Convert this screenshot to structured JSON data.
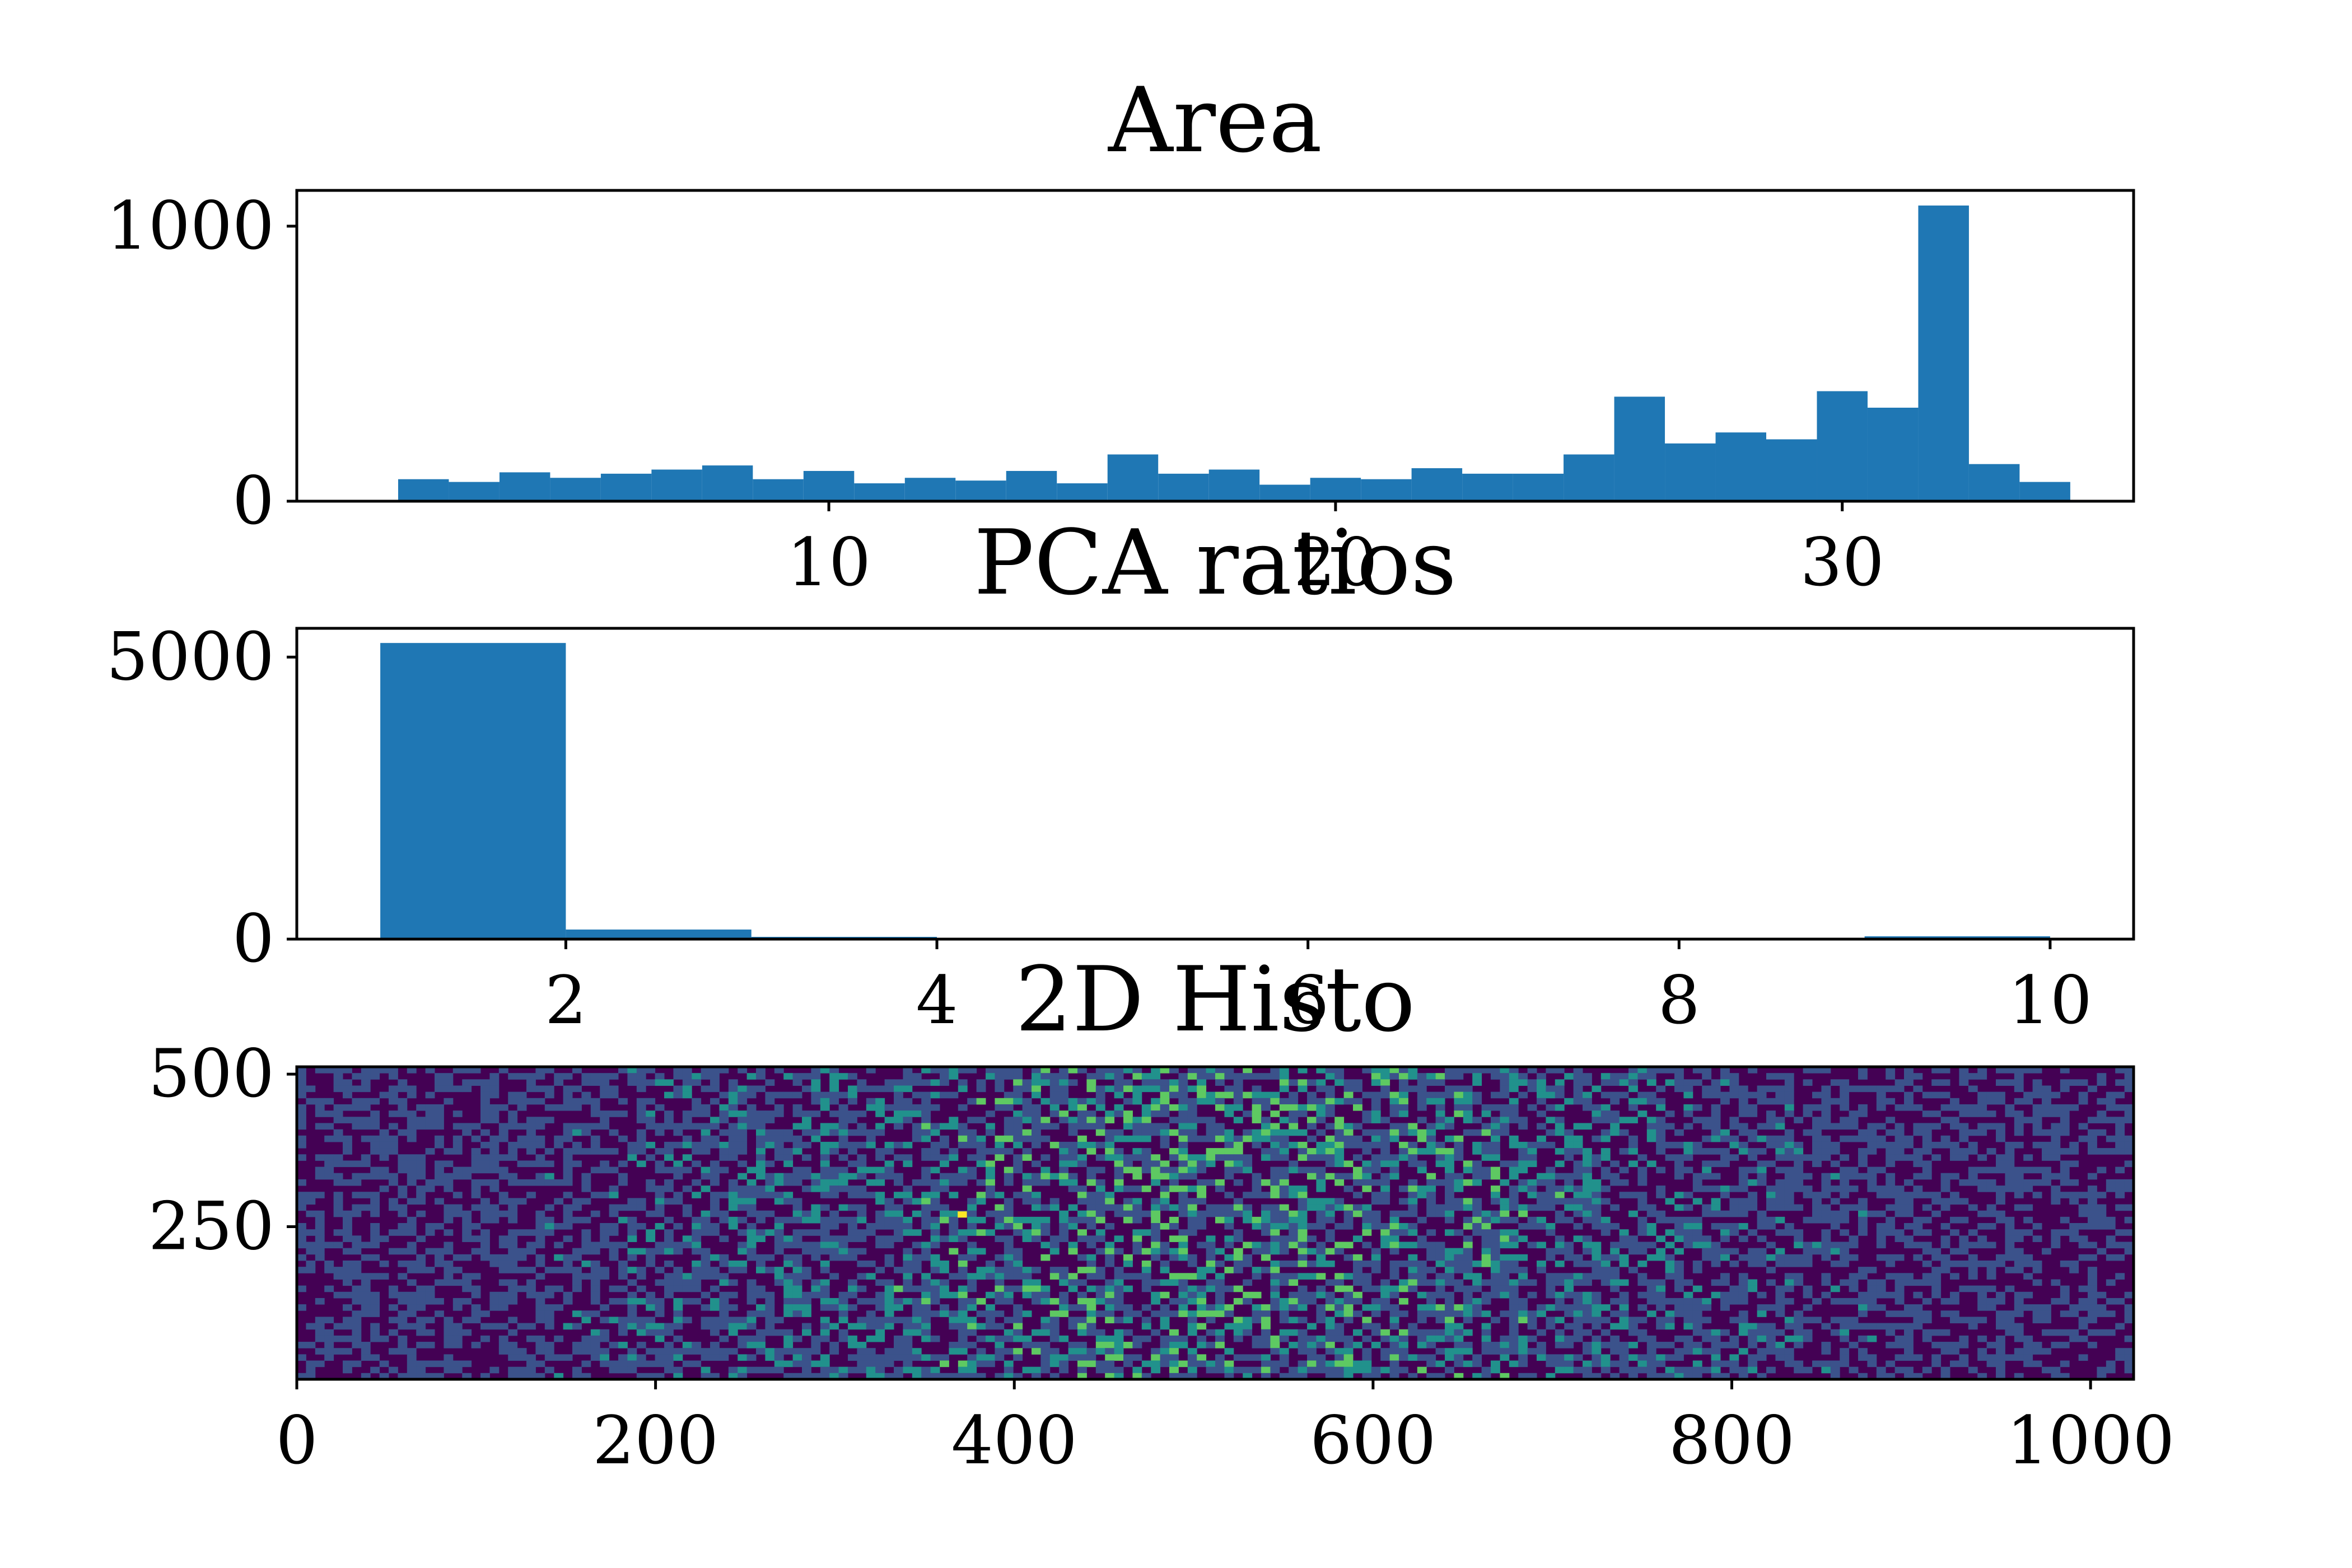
{
  "chart_data": [
    {
      "type": "bar",
      "title": "Area",
      "xlabel": "",
      "ylabel": "",
      "bin_edges": [
        1.5,
        2.5,
        3.5,
        4.5,
        5.5,
        6.5,
        7.5,
        8.5,
        9.5,
        10.5,
        11.5,
        12.5,
        13.5,
        14.5,
        15.5,
        16.5,
        17.5,
        18.5,
        19.5,
        20.5,
        21.5,
        22.5,
        23.5,
        24.5,
        25.5,
        26.5,
        27.5,
        28.5,
        29.5,
        30.5,
        31.5,
        32.5,
        33.5,
        34.5
      ],
      "values": [
        80,
        70,
        105,
        85,
        100,
        115,
        130,
        80,
        110,
        65,
        85,
        75,
        110,
        65,
        170,
        100,
        115,
        60,
        85,
        80,
        120,
        100,
        100,
        170,
        380,
        210,
        250,
        225,
        400,
        340,
        1075,
        135,
        70
      ],
      "xlim": [
        -0.5,
        35.75
      ],
      "ylim": [
        0,
        1130
      ],
      "xticks": [
        10,
        20,
        30
      ],
      "xtick_labels": [
        "10",
        "20",
        "30"
      ],
      "yticks": [
        0,
        1000
      ],
      "ytick_labels": [
        "0",
        "1000"
      ],
      "color": "#1f77b4"
    },
    {
      "type": "bar",
      "title": "PCA ratios",
      "xlabel": "",
      "ylabel": "",
      "bin_edges": [
        1,
        2,
        3,
        4,
        5,
        6,
        7,
        8,
        9,
        10
      ],
      "values": [
        5250,
        170,
        40,
        10,
        5,
        3,
        2,
        2,
        50
      ],
      "xlim": [
        0.55,
        10.45
      ],
      "ylim": [
        0,
        5510
      ],
      "xticks": [
        2,
        4,
        6,
        8,
        10
      ],
      "xtick_labels": [
        "2",
        "4",
        "6",
        "8",
        "10"
      ],
      "yticks": [
        0,
        5000
      ],
      "ytick_labels": [
        "0",
        "5000"
      ],
      "color": "#1f77b4"
    },
    {
      "type": "heatmap",
      "title": "2D Histo",
      "xlabel": "",
      "ylabel": "",
      "xlim": [
        0,
        1024
      ],
      "ylim": [
        0,
        512
      ],
      "xticks": [
        0,
        200,
        400,
        600,
        800,
        1000
      ],
      "xtick_labels": [
        "0",
        "200",
        "400",
        "600",
        "800",
        "1000"
      ],
      "yticks": [
        250,
        500
      ],
      "ytick_labels": [
        "250",
        "500"
      ],
      "colormap": "viridis",
      "colors": [
        "#440154",
        "#3b528b",
        "#21918c",
        "#5ec962",
        "#fde725"
      ],
      "bins": [
        200,
        50
      ],
      "hot_cell": {
        "x": 371,
        "y": 270
      }
    }
  ]
}
